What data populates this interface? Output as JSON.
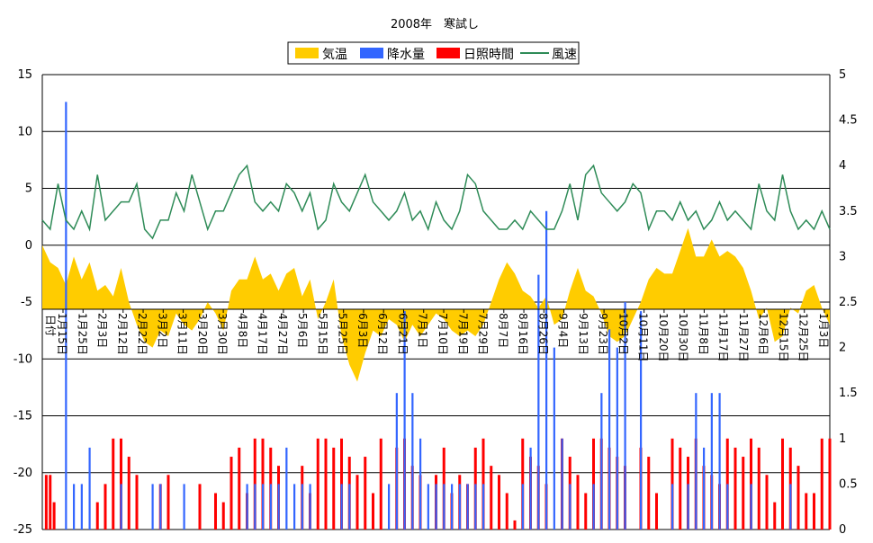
{
  "chart_data": {
    "type": "area",
    "title": "2008年　寒試し",
    "colors": {
      "temperature": "#ffcc00",
      "precipitation": "#3366ff",
      "sunshine": "#ff0000",
      "wind": "#2e8b57",
      "gridline": "#000000"
    },
    "legend": {
      "placement": "top-center",
      "items": [
        {
          "label": "気温",
          "series": "temperature",
          "marker": "box"
        },
        {
          "label": "降水量",
          "series": "precipitation",
          "marker": "box"
        },
        {
          "label": "日照時間",
          "series": "sunshine",
          "marker": "box"
        },
        {
          "label": "風速",
          "series": "wind",
          "marker": "line"
        }
      ]
    },
    "y_left": {
      "min": -25,
      "max": 15,
      "ticks": [
        "15",
        "10",
        "5",
        "0",
        "-5",
        "-10",
        "-15",
        "-20",
        "-25"
      ]
    },
    "y_right": {
      "min": 0,
      "max": 5,
      "ticks": [
        "5",
        "4.5",
        "4",
        "3.5",
        "3",
        "2.5",
        "2",
        "1.5",
        "1",
        "0.5",
        "0"
      ]
    },
    "x_axis_label": "日付",
    "x_labels": [
      "1月15日",
      "1月25日",
      "2月3日",
      "2月12日",
      "2月22日",
      "3月2日",
      "3月11日",
      "3月20日",
      "3月30日",
      "4月8日",
      "4月17日",
      "4月27日",
      "5月6日",
      "5月15日",
      "5月25日",
      "6月3日",
      "6月12日",
      "6月21日",
      "7月1日",
      "7月10日",
      "7月19日",
      "7月29日",
      "8月7日",
      "8月16日",
      "8月26日",
      "9月4日",
      "9月13日",
      "9月23日",
      "10月2日",
      "10月11日",
      "10月20日",
      "10月30日",
      "11月8日",
      "11月17日",
      "11月27日",
      "12月6日",
      "12月15日",
      "12月25日",
      "1月3日"
    ],
    "temperature_points": [
      [
        0,
        0
      ],
      [
        0.01,
        -1.5
      ],
      [
        0.02,
        -2
      ],
      [
        0.03,
        -3.5
      ],
      [
        0.04,
        -1
      ],
      [
        0.05,
        -3
      ],
      [
        0.06,
        -1.5
      ],
      [
        0.07,
        -4
      ],
      [
        0.08,
        -3.5
      ],
      [
        0.09,
        -4.5
      ],
      [
        0.1,
        -2
      ],
      [
        0.11,
        -5
      ],
      [
        0.12,
        -7
      ],
      [
        0.13,
        -8.5
      ],
      [
        0.14,
        -9
      ],
      [
        0.15,
        -7.5
      ],
      [
        0.16,
        -8
      ],
      [
        0.17,
        -6
      ],
      [
        0.18,
        -7
      ],
      [
        0.19,
        -7.5
      ],
      [
        0.2,
        -6.5
      ],
      [
        0.21,
        -5
      ],
      [
        0.22,
        -6
      ],
      [
        0.23,
        -7.5
      ],
      [
        0.24,
        -4
      ],
      [
        0.25,
        -3
      ],
      [
        0.26,
        -3
      ],
      [
        0.27,
        -1
      ],
      [
        0.28,
        -3
      ],
      [
        0.29,
        -2.5
      ],
      [
        0.3,
        -4
      ],
      [
        0.31,
        -2.5
      ],
      [
        0.32,
        -2
      ],
      [
        0.33,
        -4.5
      ],
      [
        0.34,
        -3
      ],
      [
        0.35,
        -6.5
      ],
      [
        0.36,
        -5
      ],
      [
        0.37,
        -3
      ],
      [
        0.38,
        -8
      ],
      [
        0.39,
        -10.5
      ],
      [
        0.4,
        -12
      ],
      [
        0.41,
        -9.5
      ],
      [
        0.42,
        -7.5
      ],
      [
        0.43,
        -8
      ],
      [
        0.44,
        -6.5
      ],
      [
        0.45,
        -7
      ],
      [
        0.46,
        -8.5
      ],
      [
        0.47,
        -7
      ],
      [
        0.48,
        -8
      ],
      [
        0.49,
        -7
      ],
      [
        0.5,
        -6
      ],
      [
        0.51,
        -6.5
      ],
      [
        0.52,
        -7.5
      ],
      [
        0.53,
        -8
      ],
      [
        0.54,
        -7.5
      ],
      [
        0.55,
        -8
      ],
      [
        0.56,
        -7
      ],
      [
        0.57,
        -5
      ],
      [
        0.58,
        -3
      ],
      [
        0.59,
        -1.5
      ],
      [
        0.6,
        -2.5
      ],
      [
        0.61,
        -4
      ],
      [
        0.62,
        -4.5
      ],
      [
        0.63,
        -5.5
      ],
      [
        0.64,
        -4.5
      ],
      [
        0.65,
        -7
      ],
      [
        0.66,
        -6.5
      ],
      [
        0.67,
        -4
      ],
      [
        0.68,
        -2
      ],
      [
        0.69,
        -4
      ],
      [
        0.7,
        -4.5
      ],
      [
        0.71,
        -6
      ],
      [
        0.72,
        -8
      ],
      [
        0.73,
        -8.5
      ],
      [
        0.74,
        -8
      ],
      [
        0.75,
        -6.5
      ],
      [
        0.76,
        -5
      ],
      [
        0.77,
        -3
      ],
      [
        0.78,
        -2
      ],
      [
        0.79,
        -2.5
      ],
      [
        0.8,
        -2.5
      ],
      [
        0.81,
        -0.5
      ],
      [
        0.82,
        1.5
      ],
      [
        0.83,
        -1
      ],
      [
        0.84,
        -1
      ],
      [
        0.85,
        0.5
      ],
      [
        0.86,
        -1
      ],
      [
        0.87,
        -0.5
      ],
      [
        0.88,
        -1
      ],
      [
        0.89,
        -2
      ],
      [
        0.9,
        -4
      ],
      [
        0.91,
        -6.5
      ],
      [
        0.92,
        -5.5
      ],
      [
        0.93,
        -8.5
      ],
      [
        0.94,
        -8
      ],
      [
        0.95,
        -5.5
      ],
      [
        0.96,
        -6
      ],
      [
        0.97,
        -4
      ],
      [
        0.98,
        -3.5
      ],
      [
        0.99,
        -5.5
      ],
      [
        1,
        -7
      ]
    ],
    "wind_points": [
      [
        0,
        3.4
      ],
      [
        0.01,
        3.3
      ],
      [
        0.02,
        3.8
      ],
      [
        0.03,
        3.4
      ],
      [
        0.04,
        3.3
      ],
      [
        0.05,
        3.5
      ],
      [
        0.06,
        3.3
      ],
      [
        0.07,
        3.9
      ],
      [
        0.08,
        3.4
      ],
      [
        0.09,
        3.5
      ],
      [
        0.1,
        3.6
      ],
      [
        0.11,
        3.6
      ],
      [
        0.12,
        3.8
      ],
      [
        0.13,
        3.3
      ],
      [
        0.14,
        3.2
      ],
      [
        0.15,
        3.4
      ],
      [
        0.16,
        3.4
      ],
      [
        0.17,
        3.7
      ],
      [
        0.18,
        3.5
      ],
      [
        0.19,
        3.9
      ],
      [
        0.2,
        3.6
      ],
      [
        0.21,
        3.3
      ],
      [
        0.22,
        3.5
      ],
      [
        0.23,
        3.5
      ],
      [
        0.24,
        3.7
      ],
      [
        0.25,
        3.9
      ],
      [
        0.26,
        4.0
      ],
      [
        0.27,
        3.6
      ],
      [
        0.28,
        3.5
      ],
      [
        0.29,
        3.6
      ],
      [
        0.3,
        3.5
      ],
      [
        0.31,
        3.8
      ],
      [
        0.32,
        3.7
      ],
      [
        0.33,
        3.5
      ],
      [
        0.34,
        3.7
      ],
      [
        0.35,
        3.3
      ],
      [
        0.36,
        3.4
      ],
      [
        0.37,
        3.8
      ],
      [
        0.38,
        3.6
      ],
      [
        0.39,
        3.5
      ],
      [
        0.4,
        3.7
      ],
      [
        0.41,
        3.9
      ],
      [
        0.42,
        3.6
      ],
      [
        0.43,
        3.5
      ],
      [
        0.44,
        3.4
      ],
      [
        0.45,
        3.5
      ],
      [
        0.46,
        3.7
      ],
      [
        0.47,
        3.4
      ],
      [
        0.48,
        3.5
      ],
      [
        0.49,
        3.3
      ],
      [
        0.5,
        3.6
      ],
      [
        0.51,
        3.4
      ],
      [
        0.52,
        3.3
      ],
      [
        0.53,
        3.5
      ],
      [
        0.54,
        3.9
      ],
      [
        0.55,
        3.8
      ],
      [
        0.56,
        3.5
      ],
      [
        0.57,
        3.4
      ],
      [
        0.58,
        3.3
      ],
      [
        0.59,
        3.3
      ],
      [
        0.6,
        3.4
      ],
      [
        0.61,
        3.3
      ],
      [
        0.62,
        3.5
      ],
      [
        0.63,
        3.4
      ],
      [
        0.64,
        3.3
      ],
      [
        0.65,
        3.3
      ],
      [
        0.66,
        3.5
      ],
      [
        0.67,
        3.8
      ],
      [
        0.68,
        3.4
      ],
      [
        0.69,
        3.9
      ],
      [
        0.7,
        4.0
      ],
      [
        0.71,
        3.7
      ],
      [
        0.72,
        3.6
      ],
      [
        0.73,
        3.5
      ],
      [
        0.74,
        3.6
      ],
      [
        0.75,
        3.8
      ],
      [
        0.76,
        3.7
      ],
      [
        0.77,
        3.3
      ],
      [
        0.78,
        3.5
      ],
      [
        0.79,
        3.5
      ],
      [
        0.8,
        3.4
      ],
      [
        0.81,
        3.6
      ],
      [
        0.82,
        3.4
      ],
      [
        0.83,
        3.5
      ],
      [
        0.84,
        3.3
      ],
      [
        0.85,
        3.4
      ],
      [
        0.86,
        3.6
      ],
      [
        0.87,
        3.4
      ],
      [
        0.88,
        3.5
      ],
      [
        0.89,
        3.4
      ],
      [
        0.9,
        3.3
      ],
      [
        0.91,
        3.8
      ],
      [
        0.92,
        3.5
      ],
      [
        0.93,
        3.4
      ],
      [
        0.94,
        3.9
      ],
      [
        0.95,
        3.5
      ],
      [
        0.96,
        3.3
      ],
      [
        0.97,
        3.4
      ],
      [
        0.98,
        3.3
      ],
      [
        0.99,
        3.5
      ],
      [
        1,
        3.3
      ]
    ],
    "precipitation_bars": [
      [
        0.03,
        4.7
      ],
      [
        0.04,
        0.5
      ],
      [
        0.05,
        0.5
      ],
      [
        0.06,
        0.9
      ],
      [
        0.1,
        0.5
      ],
      [
        0.14,
        0.5
      ],
      [
        0.15,
        0.5
      ],
      [
        0.18,
        0.5
      ],
      [
        0.26,
        0.5
      ],
      [
        0.27,
        0.5
      ],
      [
        0.28,
        0.5
      ],
      [
        0.29,
        0.5
      ],
      [
        0.3,
        0.5
      ],
      [
        0.31,
        0.9
      ],
      [
        0.32,
        0.5
      ],
      [
        0.33,
        0.5
      ],
      [
        0.34,
        0.5
      ],
      [
        0.38,
        0.5
      ],
      [
        0.39,
        0.5
      ],
      [
        0.44,
        0.5
      ],
      [
        0.45,
        1.5
      ],
      [
        0.46,
        2.4
      ],
      [
        0.47,
        1.5
      ],
      [
        0.48,
        1.0
      ],
      [
        0.49,
        0.5
      ],
      [
        0.5,
        0.5
      ],
      [
        0.51,
        0.5
      ],
      [
        0.52,
        0.5
      ],
      [
        0.53,
        0.5
      ],
      [
        0.54,
        0.5
      ],
      [
        0.55,
        0.5
      ],
      [
        0.56,
        0.5
      ],
      [
        0.61,
        0.5
      ],
      [
        0.62,
        0.9
      ],
      [
        0.63,
        2.8
      ],
      [
        0.64,
        3.5
      ],
      [
        0.65,
        2.0
      ],
      [
        0.66,
        1.0
      ],
      [
        0.67,
        0.5
      ],
      [
        0.7,
        0.5
      ],
      [
        0.71,
        1.5
      ],
      [
        0.72,
        2.2
      ],
      [
        0.73,
        2.0
      ],
      [
        0.74,
        2.5
      ],
      [
        0.76,
        2.4
      ],
      [
        0.8,
        0.5
      ],
      [
        0.82,
        0.5
      ],
      [
        0.83,
        1.5
      ],
      [
        0.84,
        0.9
      ],
      [
        0.85,
        1.5
      ],
      [
        0.86,
        1.5
      ],
      [
        0.87,
        0.5
      ],
      [
        0.9,
        0.5
      ],
      [
        0.95,
        0.5
      ]
    ],
    "sunshine_bars": [
      [
        0.005,
        0.6
      ],
      [
        0.01,
        0.6
      ],
      [
        0.015,
        0.3
      ],
      [
        0.07,
        0.3
      ],
      [
        0.08,
        0.5
      ],
      [
        0.09,
        1.0
      ],
      [
        0.1,
        1.0
      ],
      [
        0.11,
        0.8
      ],
      [
        0.12,
        0.6
      ],
      [
        0.15,
        0.5
      ],
      [
        0.16,
        0.6
      ],
      [
        0.2,
        0.5
      ],
      [
        0.22,
        0.4
      ],
      [
        0.23,
        0.3
      ],
      [
        0.24,
        0.8
      ],
      [
        0.25,
        0.9
      ],
      [
        0.26,
        0.4
      ],
      [
        0.27,
        1.0
      ],
      [
        0.28,
        1.0
      ],
      [
        0.29,
        0.9
      ],
      [
        0.3,
        0.7
      ],
      [
        0.33,
        0.7
      ],
      [
        0.34,
        0.4
      ],
      [
        0.35,
        1.0
      ],
      [
        0.36,
        1.0
      ],
      [
        0.37,
        0.9
      ],
      [
        0.38,
        1.0
      ],
      [
        0.39,
        0.8
      ],
      [
        0.4,
        0.6
      ],
      [
        0.41,
        0.8
      ],
      [
        0.42,
        0.4
      ],
      [
        0.43,
        1.0
      ],
      [
        0.45,
        0.9
      ],
      [
        0.46,
        1.0
      ],
      [
        0.47,
        0.7
      ],
      [
        0.48,
        0.6
      ],
      [
        0.5,
        0.6
      ],
      [
        0.51,
        0.9
      ],
      [
        0.52,
        0.4
      ],
      [
        0.53,
        0.6
      ],
      [
        0.54,
        0.5
      ],
      [
        0.55,
        0.9
      ],
      [
        0.56,
        1.0
      ],
      [
        0.57,
        0.7
      ],
      [
        0.58,
        0.6
      ],
      [
        0.59,
        0.4
      ],
      [
        0.6,
        0.1
      ],
      [
        0.61,
        1.0
      ],
      [
        0.62,
        0.8
      ],
      [
        0.63,
        0.7
      ],
      [
        0.64,
        0.5
      ],
      [
        0.66,
        1.0
      ],
      [
        0.67,
        0.8
      ],
      [
        0.68,
        0.6
      ],
      [
        0.69,
        0.4
      ],
      [
        0.7,
        1.0
      ],
      [
        0.71,
        1.0
      ],
      [
        0.72,
        0.9
      ],
      [
        0.73,
        0.8
      ],
      [
        0.74,
        0.7
      ],
      [
        0.76,
        0.9
      ],
      [
        0.77,
        0.8
      ],
      [
        0.78,
        0.4
      ],
      [
        0.8,
        1.0
      ],
      [
        0.81,
        0.9
      ],
      [
        0.82,
        0.8
      ],
      [
        0.83,
        1.0
      ],
      [
        0.84,
        0.7
      ],
      [
        0.85,
        0.6
      ],
      [
        0.86,
        0.5
      ],
      [
        0.87,
        1.0
      ],
      [
        0.88,
        0.9
      ],
      [
        0.89,
        0.8
      ],
      [
        0.9,
        1.0
      ],
      [
        0.91,
        0.9
      ],
      [
        0.92,
        0.6
      ],
      [
        0.93,
        0.3
      ],
      [
        0.94,
        1.0
      ],
      [
        0.95,
        0.9
      ],
      [
        0.96,
        0.7
      ],
      [
        0.97,
        0.4
      ],
      [
        0.98,
        0.4
      ],
      [
        0.99,
        1.0
      ],
      [
        1.0,
        1.0
      ]
    ]
  }
}
